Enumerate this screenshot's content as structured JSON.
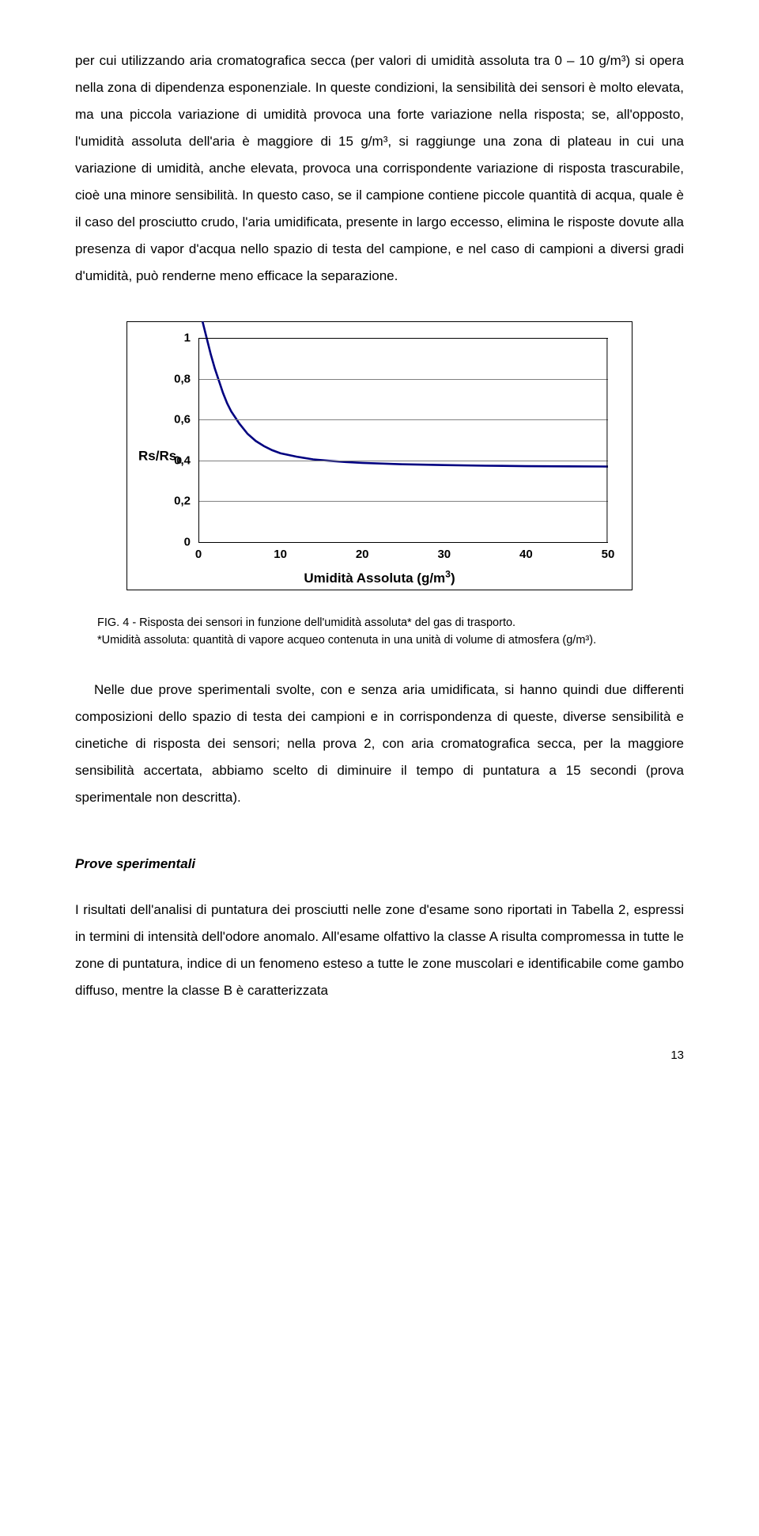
{
  "para1": "per cui utilizzando aria cromatografica secca (per valori di umidità assoluta tra 0 – 10 g/m³) si opera nella zona di dipendenza esponenziale. In queste condizioni, la sensibilità dei sensori è molto elevata, ma una piccola variazione di umidità provoca una forte variazione nella risposta; se, all'opposto, l'umidità assoluta dell'aria è maggiore di 15 g/m³, si raggiunge una zona di plateau in cui una variazione di umidità, anche elevata, provoca una corrispondente variazione di risposta trascurabile, cioè una minore sensibilità. In questo caso, se il campione contiene piccole quantità di acqua, quale è il caso del prosciutto crudo, l'aria umidificata, presente in largo eccesso, elimina le risposte dovute alla presenza di vapor d'acqua nello spazio di testa del campione, e nel caso di campioni a diversi gradi d'umidità, può renderne meno efficace la separazione.",
  "chart": {
    "type": "line",
    "yaxis_label": "Rs/Rs",
    "yaxis_label_sub": "0",
    "xaxis_label": "Umidità Assoluta   (g/m",
    "xaxis_label_sup": "3",
    "xaxis_label_after": ")",
    "xlim": [
      0,
      50
    ],
    "ylim": [
      0,
      1
    ],
    "xticks": [
      0,
      10,
      20,
      30,
      40,
      50
    ],
    "yticks_labels": [
      "0",
      "0,2",
      "0,4",
      "0,6",
      "0,8",
      "1"
    ],
    "yticks_vals": [
      0,
      0.2,
      0.4,
      0.6,
      0.8,
      1
    ],
    "grid_color": "#808080",
    "axis_line_width": 1.6,
    "line_color": "#000080",
    "line_width": 2.6,
    "points": [
      [
        0.5,
        1.08
      ],
      [
        1,
        1.0
      ],
      [
        1.5,
        0.92
      ],
      [
        2,
        0.85
      ],
      [
        2.5,
        0.79
      ],
      [
        3,
        0.73
      ],
      [
        3.5,
        0.68
      ],
      [
        4,
        0.64
      ],
      [
        5,
        0.58
      ],
      [
        6,
        0.53
      ],
      [
        7,
        0.495
      ],
      [
        8,
        0.47
      ],
      [
        9,
        0.45
      ],
      [
        10,
        0.435
      ],
      [
        12,
        0.418
      ],
      [
        14,
        0.405
      ],
      [
        16,
        0.398
      ],
      [
        18,
        0.392
      ],
      [
        20,
        0.388
      ],
      [
        25,
        0.381
      ],
      [
        30,
        0.377
      ],
      [
        35,
        0.374
      ],
      [
        40,
        0.372
      ],
      [
        45,
        0.371
      ],
      [
        50,
        0.37
      ]
    ]
  },
  "caption_fig_prefix": "F",
  "caption_fig_sc": "IG",
  "caption_line1": ". 4 - Risposta dei sensori in funzione dell'umidità assoluta* del gas di trasporto.",
  "caption_line2": "*Umidità assoluta: quantità di vapore acqueo contenuta in una unità di volume di atmosfera (g/m³).",
  "para2": "Nelle due prove sperimentali svolte, con e senza aria umidificata, si hanno quindi due differenti composizioni dello spazio di testa dei campioni e in corrispondenza di queste, diverse sensibilità e cinetiche di risposta dei sensori; nella prova 2, con aria cromatografica secca, per la maggiore sensibilità accertata, abbiamo scelto di diminuire il tempo di puntatura a 15 secondi (prova sperimentale non descritta).",
  "section_title": "Prove sperimentali",
  "para3": "I risultati dell'analisi di puntatura dei prosciutti nelle zone d'esame sono riportati in Tabella 2, espressi in termini di intensità dell'odore anomalo. All'esame olfattivo la classe A risulta compromessa in tutte le zone di puntatura, indice di un fenomeno esteso a tutte le zone muscolari e identificabile come gambo diffuso, mentre la classe B è caratterizzata",
  "page_number": "13"
}
